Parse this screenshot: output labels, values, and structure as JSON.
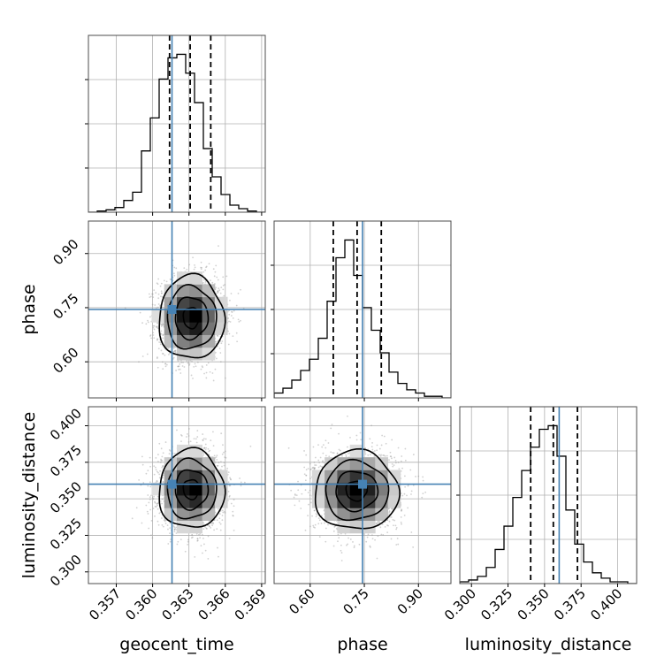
{
  "chart_data": {
    "type": "corner",
    "params": [
      "geocent_time",
      "phase",
      "luminosity_distance"
    ],
    "labels": {
      "geocent_time": "geocent_time",
      "phase": "phase",
      "luminosity_distance": "luminosity_distance"
    },
    "ranges": {
      "geocent_time": [
        0.3547,
        0.3693
      ],
      "phase": [
        0.5,
        0.99
      ],
      "luminosity_distance": [
        0.292,
        0.413
      ]
    },
    "ticks": {
      "geocent_time": [
        0.357,
        0.36,
        0.363,
        0.366,
        0.369
      ],
      "phase": [
        0.6,
        0.75,
        0.9
      ],
      "luminosity_distance": [
        0.3,
        0.325,
        0.35,
        0.375,
        0.4
      ]
    },
    "tick_labels": {
      "geocent_time": [
        "0.357",
        "0.360",
        "0.363",
        "0.366",
        "0.369"
      ],
      "phase": [
        "0.60",
        "0.75",
        "0.90"
      ],
      "luminosity_distance": [
        "0.300",
        "0.325",
        "0.350",
        "0.375",
        "0.400"
      ]
    },
    "truths": {
      "geocent_time": 0.3616,
      "phase": 0.745,
      "luminosity_distance": 0.36
    },
    "quantiles": {
      "geocent_time": [
        0.3614,
        0.3631,
        0.3648
      ],
      "phase": [
        0.664,
        0.73,
        0.797
      ],
      "luminosity_distance": [
        0.3405,
        0.356,
        0.3725
      ]
    },
    "histograms": {
      "geocent_time": {
        "counts": [
          0,
          1,
          2,
          4,
          10,
          17,
          52,
          80,
          113,
          131,
          134,
          118,
          93,
          54,
          30,
          15,
          6,
          3,
          1,
          0
        ],
        "range": [
          0.3547,
          0.3693
        ]
      },
      "phase": {
        "counts": [
          3,
          6,
          11,
          17,
          24,
          37,
          60,
          87,
          98,
          76,
          56,
          42,
          28,
          16,
          9,
          5,
          3,
          1,
          1,
          0
        ],
        "range": [
          0.5,
          0.99
        ]
      },
      "luminosity_distance": {
        "counts": [
          1,
          2,
          4,
          9,
          19,
          32,
          48,
          63,
          76,
          86,
          88,
          71,
          41,
          22,
          12,
          6,
          3,
          1,
          1,
          0
        ],
        "range": [
          0.292,
          0.413
        ]
      }
    },
    "density_2d": [
      {
        "x": "geocent_time",
        "y": "phase",
        "center": [
          0.3632,
          0.722
        ],
        "sigma": [
          0.00135,
          0.058
        ]
      },
      {
        "x": "geocent_time",
        "y": "luminosity_distance",
        "center": [
          0.3632,
          0.3565
        ],
        "sigma": [
          0.00135,
          0.0135
        ]
      },
      {
        "x": "phase",
        "y": "luminosity_distance",
        "center": [
          0.728,
          0.3555
        ],
        "sigma": [
          0.058,
          0.0135
        ]
      }
    ],
    "contour_levels_sigma": [
      0.5,
      1.0,
      1.5,
      2.0
    ],
    "grid": true,
    "truth_color": "#4682b4",
    "line_color": "#000000"
  }
}
